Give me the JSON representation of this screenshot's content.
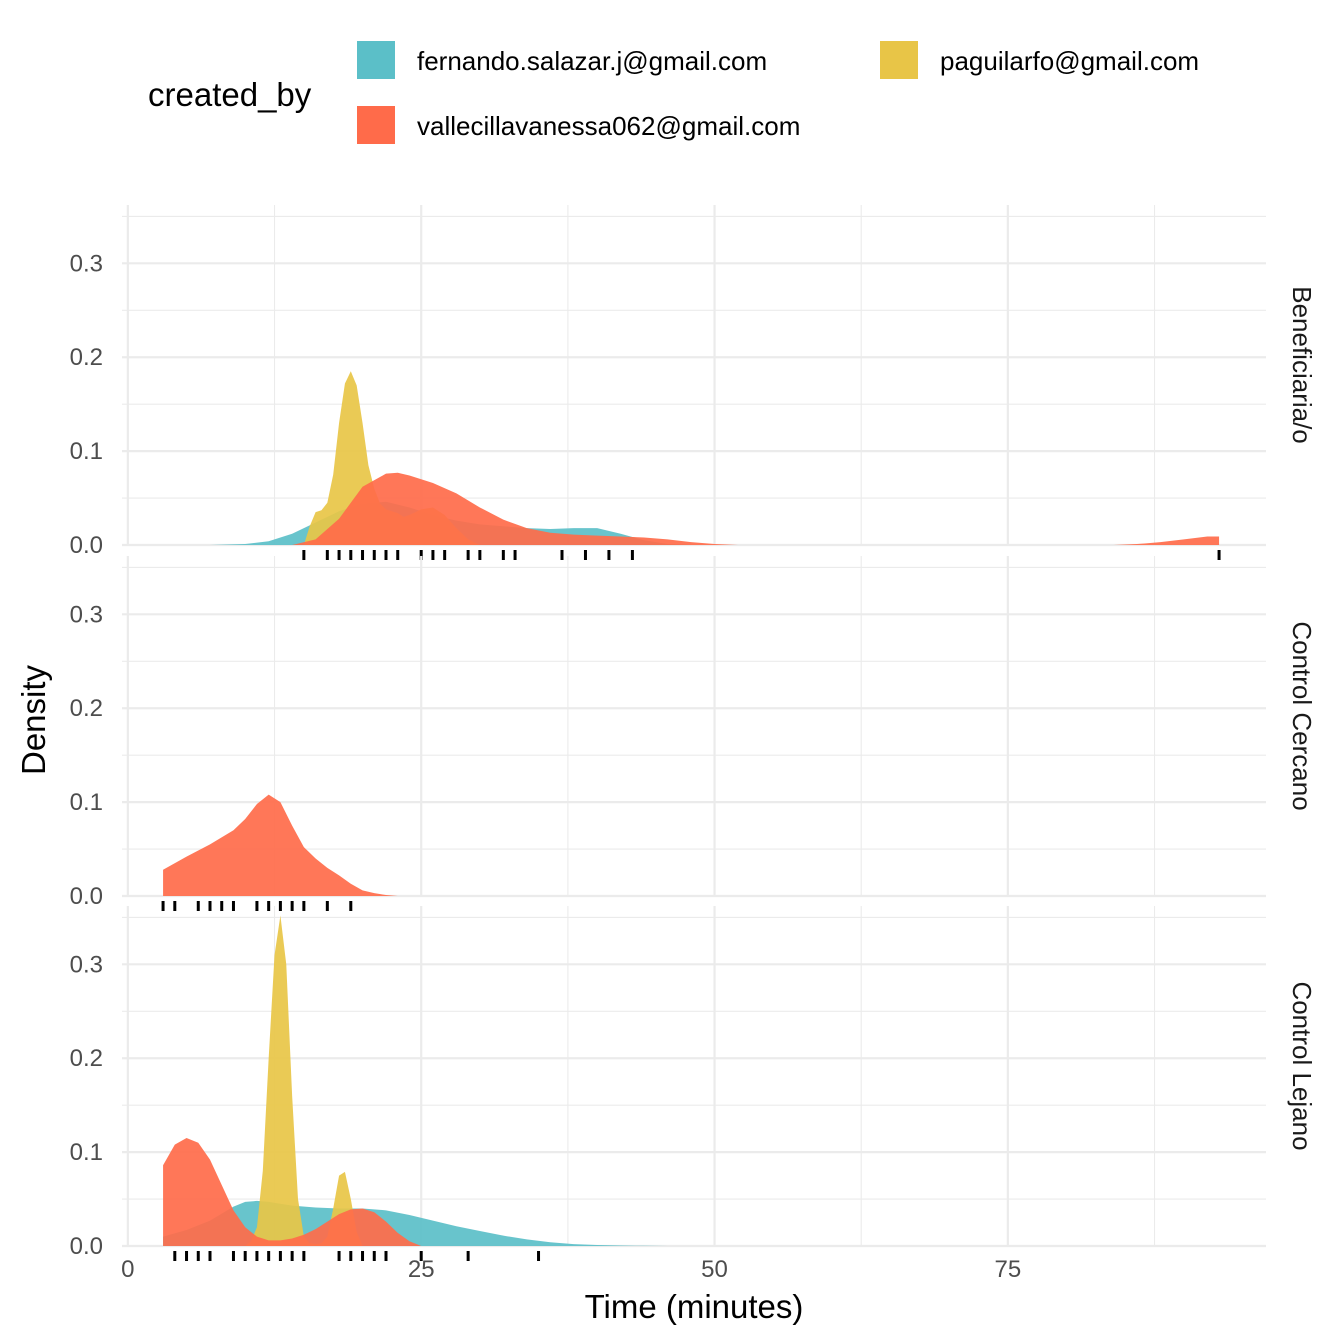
{
  "chart_data": {
    "type": "area",
    "subtype": "density",
    "xlabel": "Time (minutes)",
    "ylabel": "Density",
    "xlim": [
      -0.5,
      97
    ],
    "ylim": [
      0,
      0.36
    ],
    "x_ticks": [
      0,
      25,
      50,
      75
    ],
    "y_ticks": [
      0.0,
      0.1,
      0.2,
      0.3
    ],
    "y_tick_labels": [
      "0.0",
      "0.1",
      "0.2",
      "0.3"
    ],
    "grid": true,
    "legend": {
      "title": "created_by",
      "position": "top",
      "entries": [
        {
          "name": "fernando.salazar.j@gmail.com",
          "color": "#5BBFC8"
        },
        {
          "name": "paguilarfo@gmail.com",
          "color": "#E8C547"
        },
        {
          "name": "vallecillavanessa062@gmail.com",
          "color": "#FF6B4A"
        }
      ]
    },
    "panels": [
      {
        "label": "Beneficiaria/o",
        "series": [
          {
            "name": "fernando.salazar.j@gmail.com",
            "color": "#5BBFC8",
            "x": [
              7,
              10,
              12,
              14,
              16,
              18,
              20,
              22,
              24,
              26,
              28,
              30,
              32,
              34,
              36,
              38,
              40,
              42,
              44,
              46,
              48
            ],
            "y": [
              0,
              0.001,
              0.004,
              0.012,
              0.024,
              0.036,
              0.044,
              0.046,
              0.04,
              0.032,
              0.026,
              0.022,
              0.02,
              0.018,
              0.017,
              0.018,
              0.018,
              0.012,
              0.005,
              0.001,
              0
            ]
          },
          {
            "name": "paguilarfo@gmail.com",
            "color": "#E8C547",
            "x": [
              15,
              15.5,
              16,
              16.5,
              17,
              17.5,
              18,
              18.5,
              19,
              19.5,
              20,
              20.5,
              21,
              21.5,
              22,
              22.5,
              23,
              23.5,
              24,
              25,
              26,
              27,
              28,
              29,
              30
            ],
            "y": [
              0.0,
              0.02,
              0.035,
              0.037,
              0.045,
              0.075,
              0.13,
              0.172,
              0.185,
              0.17,
              0.13,
              0.085,
              0.06,
              0.044,
              0.038,
              0.036,
              0.034,
              0.03,
              0.032,
              0.038,
              0.04,
              0.032,
              0.018,
              0.006,
              0
            ]
          },
          {
            "name": "vallecillavanessa062@gmail.com",
            "color": "#FF6B4A",
            "x": [
              14,
              16,
              18,
              20,
              22,
              23,
              24,
              26,
              28,
              30,
              32,
              34,
              36,
              38,
              40,
              42,
              44,
              46,
              48,
              50,
              52
            ],
            "y": [
              0,
              0.006,
              0.028,
              0.062,
              0.076,
              0.077,
              0.074,
              0.066,
              0.055,
              0.04,
              0.027,
              0.018,
              0.013,
              0.011,
              0.01,
              0.009,
              0.008,
              0.006,
              0.003,
              0.001,
              0
            ]
          },
          {
            "name": "vallecillavanessa062@gmail.com",
            "color": "#FF6B4A",
            "x": [
              84,
              86,
              88,
              90,
              92,
              93
            ],
            "y": [
              0,
              0.001,
              0.003,
              0.006,
              0.009,
              0.009
            ]
          }
        ],
        "rug": [
          15,
          17,
          18,
          19,
          20,
          21,
          22,
          23,
          25,
          26,
          27,
          29,
          30,
          32,
          33,
          37,
          39,
          41,
          43,
          93
        ]
      },
      {
        "label": "Control Cercano",
        "series": [
          {
            "name": "vallecillavanessa062@gmail.com",
            "color": "#FF6B4A",
            "x": [
              3,
              5,
              7,
              9,
              10,
              11,
              12,
              13,
              14,
              15,
              16,
              17,
              18,
              19,
              20,
              21,
              22,
              23
            ],
            "y": [
              0.028,
              0.042,
              0.055,
              0.07,
              0.082,
              0.098,
              0.108,
              0.1,
              0.075,
              0.052,
              0.04,
              0.03,
              0.022,
              0.013,
              0.006,
              0.003,
              0.001,
              0
            ]
          }
        ],
        "rug": [
          3,
          4,
          6,
          7,
          8,
          9,
          11,
          12,
          13,
          14,
          15,
          17,
          19
        ]
      },
      {
        "label": "Control Lejano",
        "series": [
          {
            "name": "fernando.salazar.j@gmail.com",
            "color": "#5BBFC8",
            "x": [
              3,
              5,
              7,
              9,
              10,
              11,
              12,
              14,
              16,
              18,
              20,
              22,
              24,
              26,
              28,
              30,
              32,
              34,
              36,
              38,
              40,
              42,
              44,
              46
            ],
            "y": [
              0.01,
              0.017,
              0.027,
              0.042,
              0.047,
              0.048,
              0.047,
              0.043,
              0.041,
              0.04,
              0.04,
              0.038,
              0.033,
              0.027,
              0.021,
              0.016,
              0.011,
              0.007,
              0.004,
              0.002,
              0.001,
              0.0005,
              0.0002,
              0
            ]
          },
          {
            "name": "paguilarfo@gmail.com",
            "color": "#E8C547",
            "x": [
              10,
              10.5,
              11,
              11.5,
              12,
              12.5,
              13,
              13.5,
              14,
              14.5,
              15,
              15.5,
              16,
              16.5,
              17,
              17.5,
              18,
              18.5,
              19,
              19.5,
              20
            ],
            "y": [
              0,
              0.005,
              0.02,
              0.08,
              0.2,
              0.31,
              0.352,
              0.3,
              0.16,
              0.05,
              0.01,
              0.003,
              0.002,
              0.003,
              0.01,
              0.04,
              0.075,
              0.079,
              0.05,
              0.015,
              0
            ]
          },
          {
            "name": "vallecillavanessa062@gmail.com",
            "color": "#FF6B4A",
            "x": [
              3,
              4,
              5,
              6,
              7,
              8,
              9,
              10,
              11,
              12,
              13,
              14,
              15,
              16,
              17,
              18,
              19,
              20,
              21,
              22,
              23,
              24,
              25
            ],
            "y": [
              0.086,
              0.108,
              0.115,
              0.11,
              0.092,
              0.065,
              0.038,
              0.02,
              0.01,
              0.006,
              0.006,
              0.008,
              0.012,
              0.018,
              0.026,
              0.034,
              0.039,
              0.04,
              0.036,
              0.026,
              0.014,
              0.005,
              0
            ]
          }
        ],
        "rug": [
          4,
          5,
          6,
          7,
          9,
          10,
          11,
          12,
          13,
          14,
          15,
          18,
          19,
          20,
          21,
          22,
          25,
          29,
          35
        ]
      }
    ]
  }
}
